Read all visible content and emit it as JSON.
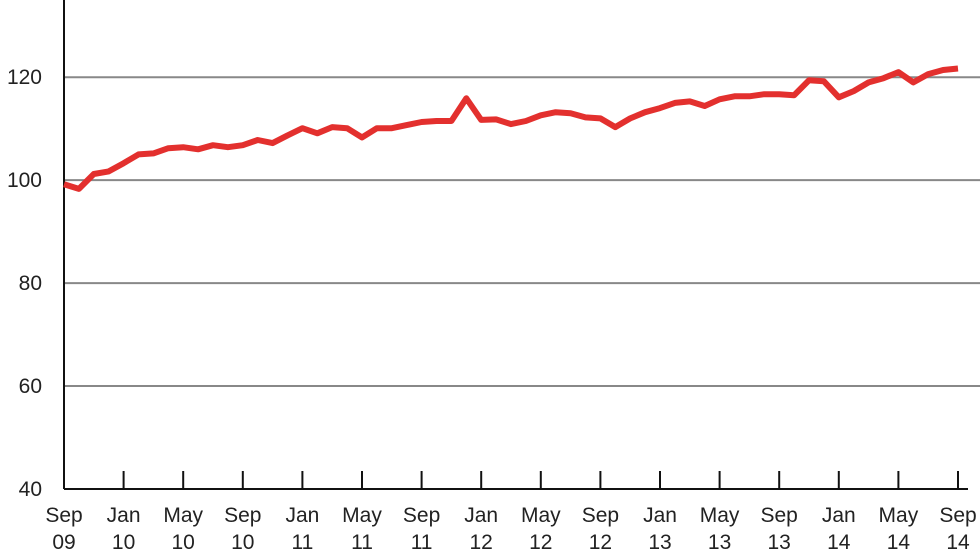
{
  "chart_data": {
    "type": "line",
    "categories": [
      "Sep\n09",
      null,
      null,
      null,
      "Jan\n10",
      null,
      null,
      null,
      "May\n10",
      null,
      null,
      null,
      "Sep\n10",
      null,
      null,
      null,
      "Jan\n11",
      null,
      null,
      null,
      "May\n11",
      null,
      null,
      null,
      "Sep\n11",
      null,
      null,
      null,
      "Jan\n12",
      null,
      null,
      null,
      "May\n12",
      null,
      null,
      null,
      "Sep\n12",
      null,
      null,
      null,
      "Jan\n13",
      null,
      null,
      null,
      "May\n13",
      null,
      null,
      null,
      "Sep\n13",
      null,
      null,
      null,
      "Jan\n14",
      null,
      null,
      null,
      "May\n14",
      null,
      null,
      null,
      "Sep\n14"
    ],
    "values": [
      99.2,
      98.3,
      101.2,
      101.7,
      103.3,
      105,
      105.2,
      106.2,
      106.4,
      106,
      106.8,
      106.4,
      106.8,
      107.8,
      107.2,
      108.7,
      110.1,
      109.1,
      110.3,
      110.1,
      108.3,
      110.1,
      110.1,
      110.7,
      111.3,
      111.5,
      111.5,
      115.9,
      111.7,
      111.8,
      110.9,
      111.5,
      112.6,
      113.2,
      113,
      112.2,
      112,
      110.3,
      112,
      113.2,
      114,
      115,
      115.3,
      114.4,
      115.7,
      116.3,
      116.3,
      116.7,
      116.7,
      116.5,
      119.4,
      119.2,
      116.1,
      117.3,
      119,
      119.8,
      121,
      119,
      120.6,
      121.4,
      121.7
    ],
    "color": "#e3302e",
    "ylim": [
      40,
      135
    ],
    "yticks": [
      40,
      60,
      80,
      100,
      120
    ],
    "grid": true
  }
}
